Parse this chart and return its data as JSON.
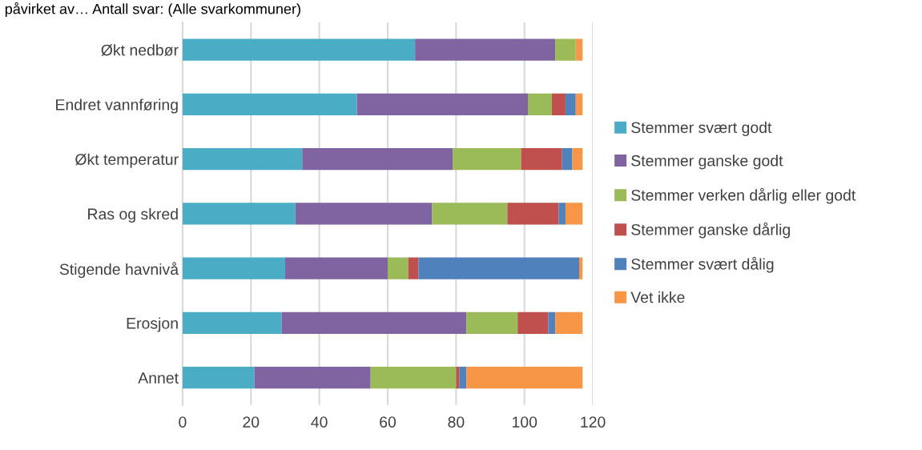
{
  "chart_data": {
    "type": "bar",
    "orientation": "horizontal",
    "stacked": true,
    "title": "påvirket av… Antall svar: (Alle svarkommuner)",
    "categories": [
      "Økt nedbør",
      "Endret vannføring",
      "Økt temperatur",
      "Ras og skred",
      "Stigende havnivå",
      "Erosjon",
      "Annet"
    ],
    "series": [
      {
        "name": "Stemmer svært godt",
        "color": "#4bacc6",
        "values": [
          68,
          51,
          35,
          33,
          30,
          29,
          21
        ]
      },
      {
        "name": "Stemmer ganske godt",
        "color": "#8064a2",
        "values": [
          41,
          50,
          44,
          40,
          30,
          54,
          34
        ]
      },
      {
        "name": "Stemmer verken dårlig eller godt",
        "color": "#9bbb59",
        "values": [
          6,
          7,
          20,
          22,
          6,
          15,
          25
        ]
      },
      {
        "name": "Stemmer ganske dårlig",
        "color": "#c0504d",
        "values": [
          0,
          4,
          12,
          15,
          3,
          9,
          1
        ]
      },
      {
        "name": "Stemmer svært dålig",
        "color": "#4f81bd",
        "values": [
          0,
          3,
          3,
          2,
          47,
          2,
          2
        ]
      },
      {
        "name": "Vet ikke",
        "color": "#f79646",
        "values": [
          2,
          2,
          3,
          5,
          1,
          8,
          34
        ]
      }
    ],
    "xlim": [
      0,
      120
    ],
    "xticks": [
      0,
      20,
      40,
      60,
      80,
      100,
      120
    ],
    "grid": "x",
    "legend": "right"
  }
}
